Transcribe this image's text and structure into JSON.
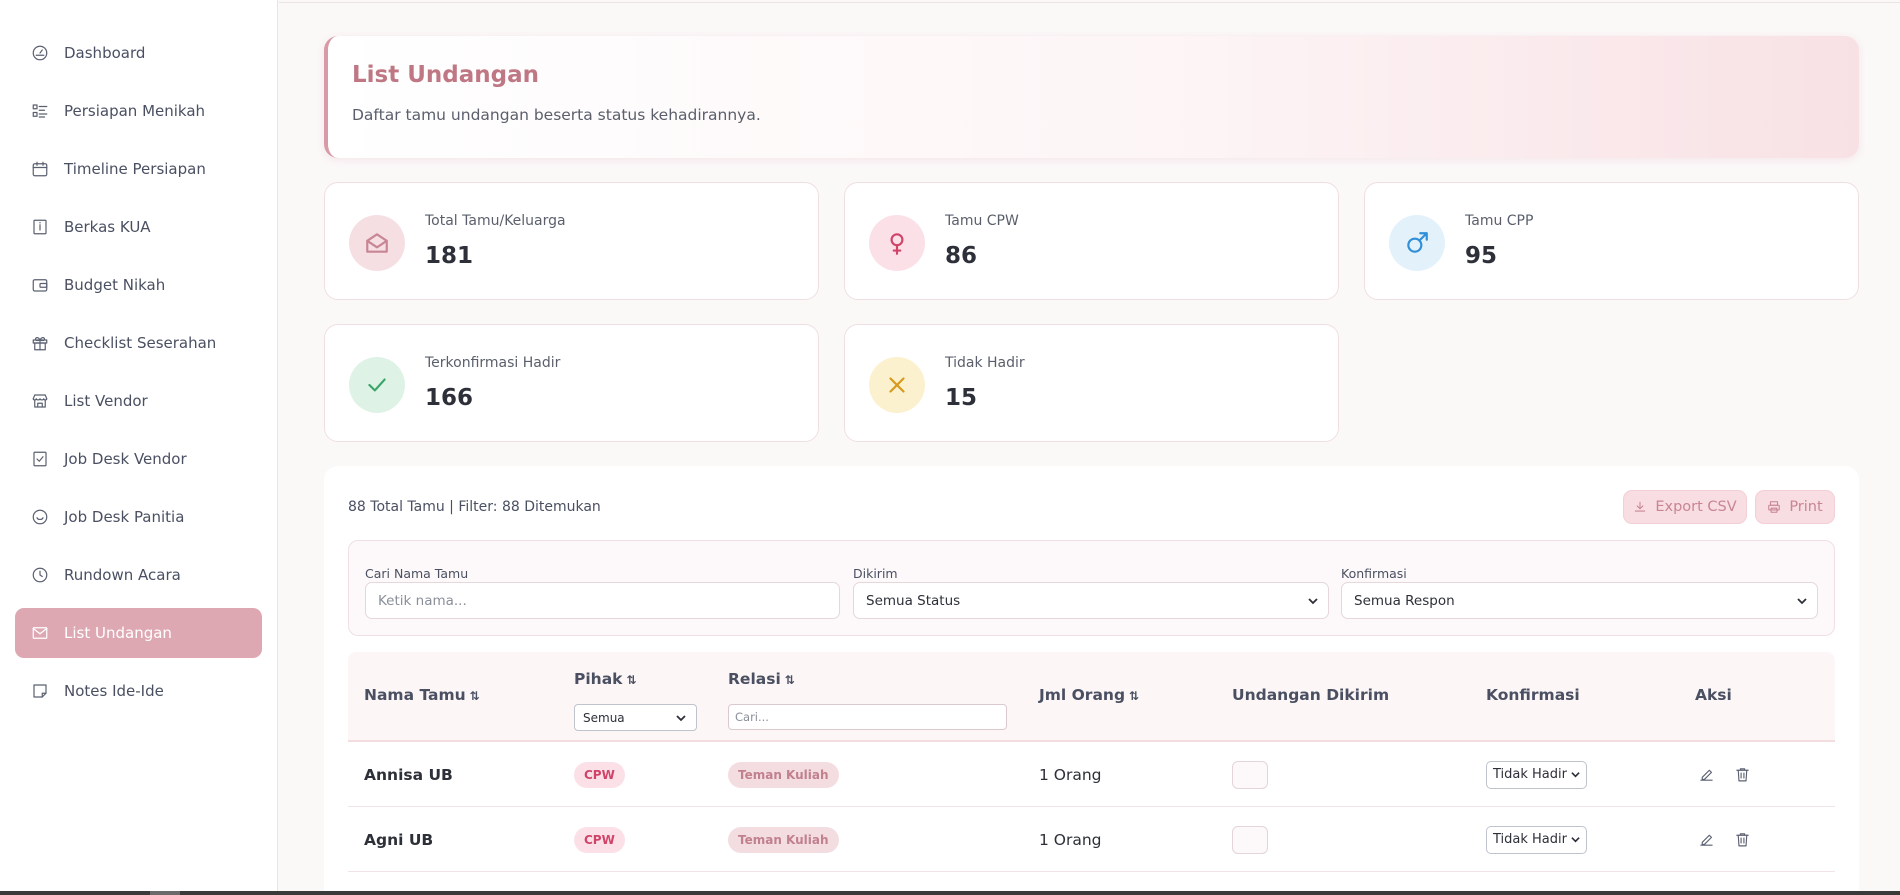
{
  "sidebar": {
    "items": [
      {
        "label": "Dashboard",
        "icon": "gauge-icon"
      },
      {
        "label": "Persiapan Menikah",
        "icon": "checklist-icon"
      },
      {
        "label": "Timeline Persiapan",
        "icon": "calendar-icon"
      },
      {
        "label": "Berkas KUA",
        "icon": "document-icon"
      },
      {
        "label": "Budget Nikah",
        "icon": "wallet-icon"
      },
      {
        "label": "Checklist Seserahan",
        "icon": "gift-icon"
      },
      {
        "label": "List Vendor",
        "icon": "store-icon"
      },
      {
        "label": "Job Desk Vendor",
        "icon": "check-square-icon"
      },
      {
        "label": "Job Desk Panitia",
        "icon": "smile-icon"
      },
      {
        "label": "Rundown Acara",
        "icon": "clock-icon"
      },
      {
        "label": "List Undangan",
        "icon": "mail-icon",
        "active": true
      },
      {
        "label": "Notes Ide-Ide",
        "icon": "note-icon"
      }
    ]
  },
  "header": {
    "title": "List Undangan",
    "subtitle": "Daftar tamu undangan beserta status kehadirannya."
  },
  "stats": [
    {
      "label": "Total Tamu/Keluarga",
      "value": "181",
      "icon": "envelope-open-icon",
      "color": "#c88593",
      "bg": "#f6dfe3"
    },
    {
      "label": "Tamu CPW",
      "value": "86",
      "icon": "female-icon",
      "color": "#d1446a",
      "bg": "#fbe1e7"
    },
    {
      "label": "Tamu CPP",
      "value": "95",
      "icon": "male-icon",
      "color": "#2f8fd8",
      "bg": "#e3f1fb"
    },
    {
      "label": "Terkonfirmasi Hadir",
      "value": "166",
      "icon": "check-icon",
      "color": "#3aa56b",
      "bg": "#def3e6"
    },
    {
      "label": "Tidak Hadir",
      "value": "15",
      "icon": "x-icon",
      "color": "#d69a1c",
      "bg": "#fcf1cf"
    }
  ],
  "guests": {
    "summary": "88 Total Tamu | Filter: 88 Ditemukan",
    "export_label": "Export CSV",
    "print_label": "Print",
    "filters": {
      "search_label": "Cari Nama Tamu",
      "search_placeholder": "Ketik nama...",
      "sent_label": "Dikirim",
      "sent_value": "Semua Status",
      "confirm_label": "Konfirmasi",
      "confirm_value": "Semua Respon"
    },
    "columns": {
      "name": "Nama Tamu",
      "side": "Pihak",
      "side_filter": "Semua",
      "relation": "Relasi",
      "relation_placeholder": "Cari...",
      "count": "Jml Orang",
      "sent": "Undangan Dikirim",
      "confirm": "Konfirmasi",
      "action": "Aksi",
      "sort_glyph": "⇅"
    },
    "rows": [
      {
        "name": "Annisa UB",
        "side": "CPW",
        "relation": "Teman Kuliah",
        "count": "1 Orang",
        "confirm": "Tidak Hadir"
      },
      {
        "name": "Agni UB",
        "side": "CPW",
        "relation": "Teman Kuliah",
        "count": "1 Orang",
        "confirm": "Tidak Hadir"
      }
    ]
  }
}
